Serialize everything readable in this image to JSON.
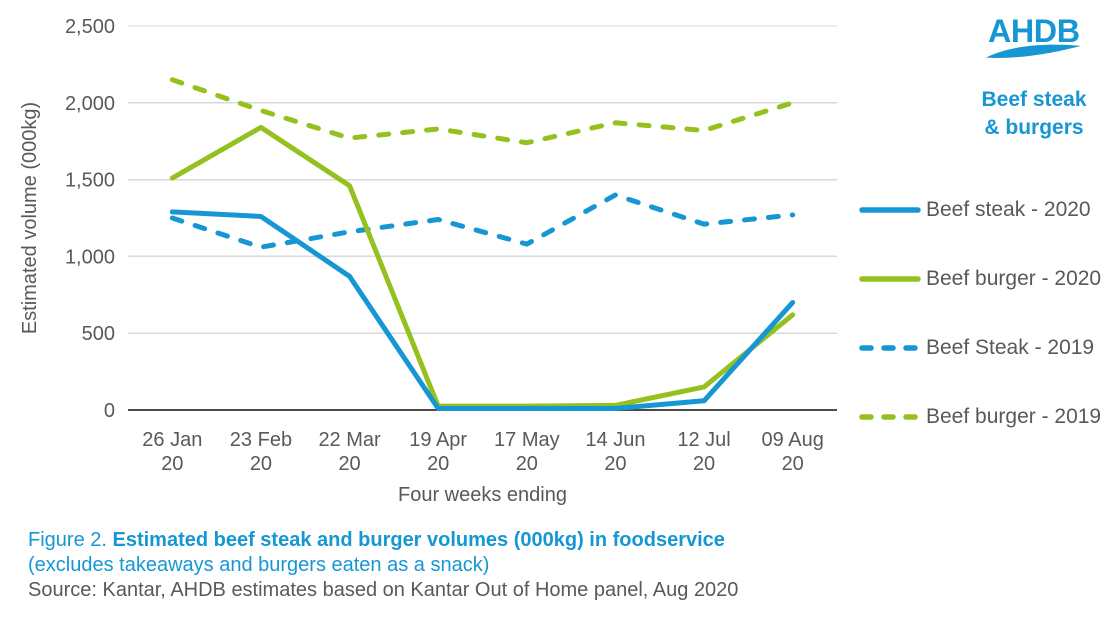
{
  "colors": {
    "accent_blue": "#1697d4",
    "accent_green": "#95c11f",
    "text_gray": "#595959",
    "grid_gray": "#d9d9d9",
    "axis_gray": "#4a4a4a"
  },
  "brand": {
    "logo_text": "AHDB",
    "subtitle_line1": "Beef steak",
    "subtitle_line2": "& burgers"
  },
  "caption": {
    "figure_prefix": "Figure 2. ",
    "title_bold": "Estimated beef steak and burger volumes (000kg) in foodservice",
    "subtitle": "(excludes takeaways and burgers eaten as a snack)",
    "source": "Source: Kantar, AHDB estimates based on Kantar Out of Home panel, Aug 2020"
  },
  "chart_data": {
    "type": "line",
    "title": "",
    "xlabel": "Four weeks ending",
    "ylabel": "Estimated volume (000kg)",
    "ylim": [
      0,
      2500
    ],
    "grid": true,
    "legend_position": "right",
    "yticks": [
      {
        "value": 0,
        "label": "0"
      },
      {
        "value": 500,
        "label": "500"
      },
      {
        "value": 1000,
        "label": "1,000"
      },
      {
        "value": 1500,
        "label": "1,500"
      },
      {
        "value": 2000,
        "label": "2,000"
      },
      {
        "value": 2500,
        "label": "2,500"
      }
    ],
    "categories": [
      "26 Jan",
      "23 Feb",
      "22 Mar",
      "19 Apr",
      "17 May",
      "14 Jun",
      "12 Jul",
      "09 Aug"
    ],
    "category_year": "20",
    "series": [
      {
        "name": "Beef steak - 2020",
        "color": "#1697d4",
        "dash": false,
        "values": [
          1290,
          1260,
          870,
          10,
          10,
          10,
          60,
          700
        ]
      },
      {
        "name": "Beef burger - 2020",
        "color": "#95c11f",
        "dash": false,
        "values": [
          1510,
          1840,
          1460,
          25,
          25,
          30,
          150,
          620
        ]
      },
      {
        "name": "Beef Steak - 2019",
        "color": "#1697d4",
        "dash": true,
        "values": [
          1250,
          1060,
          1160,
          1240,
          1080,
          1400,
          1210,
          1270
        ]
      },
      {
        "name": "Beef burger - 2019",
        "color": "#95c11f",
        "dash": true,
        "values": [
          2150,
          1950,
          1770,
          1830,
          1740,
          1870,
          1820,
          2000
        ]
      }
    ]
  }
}
